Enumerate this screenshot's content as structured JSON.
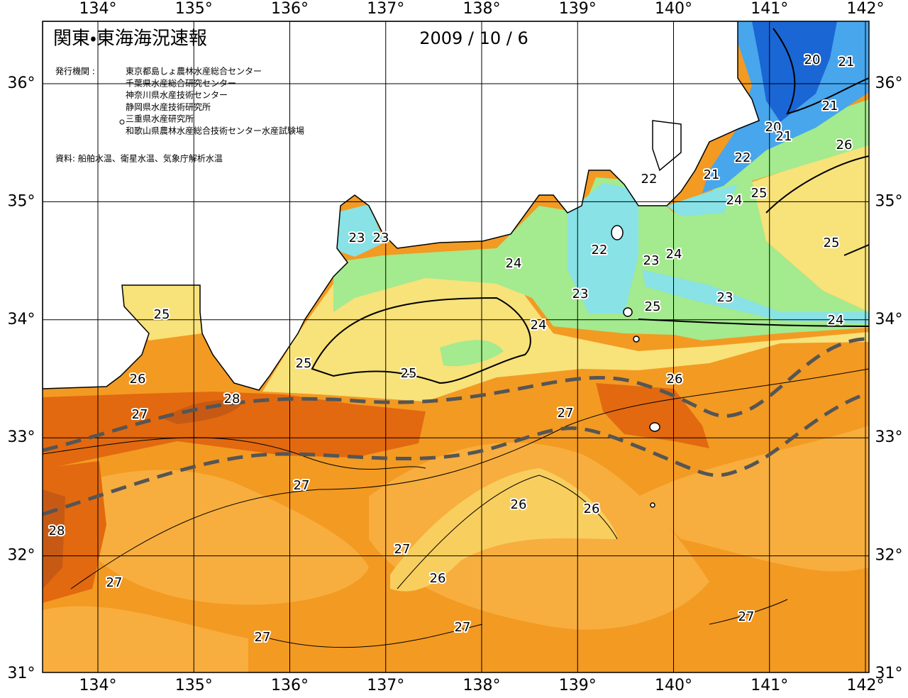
{
  "header": {
    "title": "関東・東海海況速報",
    "date": "2009 / 10 / 6",
    "issuer_label": "発行機関 :",
    "issuers": [
      "東京都島しょ農林水産総合センター",
      "千葉県水産総合研究センター",
      "神奈川県水産技術センター",
      "静岡県水産技術研究所",
      "三重県水産研究所",
      "和歌山県農林水産総合技術センター水産試験場"
    ],
    "source": "資料: 船舶水温、衛星水温、気象庁解析水温"
  },
  "map": {
    "longitude_labels": [
      "134°",
      "135°",
      "136°",
      "137°",
      "138°",
      "139°",
      "140°",
      "141°",
      "142°"
    ],
    "latitude_labels": [
      "36°",
      "35°",
      "34°",
      "33°",
      "32°",
      "31°"
    ],
    "contour_labels": [
      "20",
      "21",
      "21",
      "20",
      "21",
      "26",
      "22",
      "21",
      "22",
      "25",
      "24",
      "25",
      "23",
      "23",
      "22",
      "24",
      "23",
      "24",
      "23",
      "23",
      "25",
      "24",
      "25",
      "24",
      "25",
      "25",
      "26",
      "26",
      "28",
      "27",
      "27",
      "27",
      "26",
      "26",
      "28",
      "27",
      "26",
      "27",
      "27",
      "27",
      "27"
    ]
  }
}
